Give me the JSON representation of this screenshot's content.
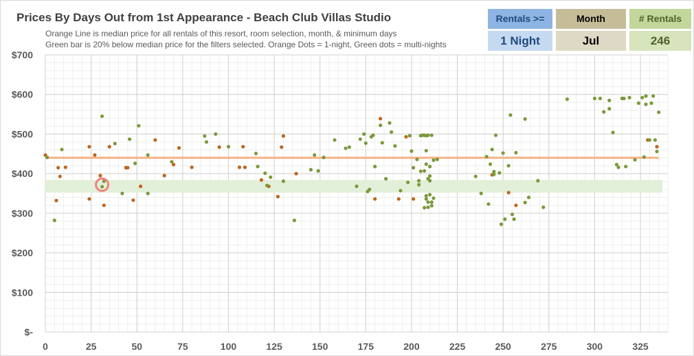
{
  "title": "Prices By Days Out from 1st Appearance - Beach Club Villas Studio",
  "subtitle_lines": [
    "Orange Line is median price for all rentals of this resort, room selection, month, & minimum days",
    "Green bar is 20% below median price for the filters selected. Orange Dots = 1-night, Green dots = multi-nights"
  ],
  "kpis": [
    {
      "label": "Rentals >=",
      "value": "1 Night",
      "header_color": "#8eb4e3",
      "value_bg": "#c5d9f1",
      "text_color": "#1f497d"
    },
    {
      "label": "Month",
      "value": "Jul",
      "header_color": "#c4bd97",
      "value_bg": "#ddd9c4",
      "text_color": "#000000"
    },
    {
      "label": "# Rentals",
      "value": "246",
      "header_color": "#c3d69b",
      "value_bg": "#d7e4bc",
      "text_color": "#4f6228"
    }
  ],
  "colors": {
    "one_night": "#c0651b",
    "multi_night": "#7a9a3a",
    "median_line": "#f4b183",
    "discount_band": "#e2efd9",
    "highlight_ring": "#f08080"
  },
  "chart_data": {
    "type": "scatter",
    "xlim": [
      0,
      340
    ],
    "ylim": [
      0,
      700
    ],
    "x_ticks": [
      0,
      25,
      50,
      75,
      100,
      125,
      150,
      175,
      200,
      225,
      250,
      275,
      300,
      325
    ],
    "y_ticks": [
      {
        "value": 0,
        "label": "$-"
      },
      {
        "value": 100,
        "label": "$100"
      },
      {
        "value": 200,
        "label": "$200"
      },
      {
        "value": 300,
        "label": "$300"
      },
      {
        "value": 400,
        "label": "$400"
      },
      {
        "value": 500,
        "label": "$500"
      },
      {
        "value": 600,
        "label": "$600"
      },
      {
        "value": 700,
        "label": "$700"
      }
    ],
    "grid": true,
    "median_price": 440,
    "discount_band": [
      352,
      384
    ],
    "highlight_point": [
      31,
      372
    ],
    "series": [
      {
        "key": "one_night",
        "points": [
          [
            0,
            447
          ],
          [
            7,
            415
          ],
          [
            8,
            393
          ],
          [
            11,
            416
          ],
          [
            6,
            332
          ],
          [
            24,
            336
          ],
          [
            24,
            468
          ],
          [
            27,
            447
          ],
          [
            30,
            395
          ],
          [
            32,
            320
          ],
          [
            35,
            468
          ],
          [
            44,
            415
          ],
          [
            45,
            415
          ],
          [
            48,
            333
          ],
          [
            52,
            368
          ],
          [
            60,
            485
          ],
          [
            65,
            395
          ],
          [
            70,
            423
          ],
          [
            73,
            465
          ],
          [
            80,
            416
          ],
          [
            95,
            467
          ],
          [
            106,
            416
          ],
          [
            108,
            468
          ],
          [
            109,
            416
          ],
          [
            118,
            384
          ],
          [
            122,
            368
          ],
          [
            127,
            342
          ],
          [
            129,
            467
          ],
          [
            130,
            495
          ],
          [
            137,
            400
          ],
          [
            180,
            336
          ],
          [
            183,
            539
          ],
          [
            193,
            336
          ],
          [
            197,
            493
          ],
          [
            201,
            336
          ],
          [
            244,
            397
          ],
          [
            253,
            352
          ],
          [
            257,
            320
          ],
          [
            329,
            485
          ],
          [
            334,
            468
          ]
        ]
      },
      {
        "key": "multi_night",
        "points": [
          [
            1,
            441
          ],
          [
            5,
            282
          ],
          [
            9,
            461
          ],
          [
            31,
            367
          ],
          [
            31,
            545
          ],
          [
            32,
            381
          ],
          [
            38,
            476
          ],
          [
            42,
            350
          ],
          [
            46,
            487
          ],
          [
            49,
            426
          ],
          [
            51,
            521
          ],
          [
            56,
            350
          ],
          [
            56,
            447
          ],
          [
            69,
            430
          ],
          [
            87,
            495
          ],
          [
            88,
            480
          ],
          [
            93,
            500
          ],
          [
            100,
            468
          ],
          [
            115,
            451
          ],
          [
            116,
            418
          ],
          [
            120,
            401
          ],
          [
            121,
            370
          ],
          [
            123,
            391
          ],
          [
            130,
            381
          ],
          [
            136,
            282
          ],
          [
            145,
            410
          ],
          [
            147,
            447
          ],
          [
            149,
            407
          ],
          [
            152,
            441
          ],
          [
            158,
            485
          ],
          [
            164,
            464
          ],
          [
            166,
            467
          ],
          [
            170,
            368
          ],
          [
            172,
            487
          ],
          [
            174,
            500
          ],
          [
            175,
            477
          ],
          [
            176,
            355
          ],
          [
            177,
            360
          ],
          [
            178,
            493
          ],
          [
            179,
            497
          ],
          [
            180,
            418
          ],
          [
            183,
            522
          ],
          [
            184,
            478
          ],
          [
            186,
            387
          ],
          [
            188,
            528
          ],
          [
            189,
            505
          ],
          [
            191,
            470
          ],
          [
            194,
            357
          ],
          [
            198,
            378
          ],
          [
            199,
            496
          ],
          [
            200,
            457
          ],
          [
            201,
            415
          ],
          [
            203,
            436
          ],
          [
            204,
            382
          ],
          [
            205,
            496
          ],
          [
            206,
            497
          ],
          [
            207,
            497
          ],
          [
            208,
            458
          ],
          [
            208,
            496
          ],
          [
            209,
            497
          ],
          [
            207,
            314
          ],
          [
            208,
            344
          ],
          [
            208,
            336
          ],
          [
            209,
            315
          ],
          [
            209,
            328
          ],
          [
            210,
            347
          ],
          [
            210,
            382
          ],
          [
            210,
            418
          ],
          [
            211,
            497
          ],
          [
            212,
            434
          ],
          [
            204,
            372
          ],
          [
            205,
            406
          ],
          [
            207,
            407
          ],
          [
            208,
            424
          ],
          [
            209,
            387
          ],
          [
            210,
            394
          ],
          [
            211,
            319
          ],
          [
            211,
            328
          ],
          [
            212,
            338
          ],
          [
            214,
            436
          ],
          [
            235,
            393
          ],
          [
            238,
            350
          ],
          [
            241,
            443
          ],
          [
            242,
            323
          ],
          [
            243,
            424
          ],
          [
            244,
            461
          ],
          [
            245,
            398
          ],
          [
            245,
            405
          ],
          [
            246,
            497
          ],
          [
            248,
            402
          ],
          [
            249,
            272
          ],
          [
            250,
            452
          ],
          [
            251,
            285
          ],
          [
            253,
            420
          ],
          [
            254,
            548
          ],
          [
            255,
            297
          ],
          [
            256,
            285
          ],
          [
            257,
            453
          ],
          [
            262,
            538
          ],
          [
            262,
            327
          ],
          [
            264,
            340
          ],
          [
            269,
            382
          ],
          [
            272,
            315
          ],
          [
            285,
            588
          ],
          [
            300,
            590
          ],
          [
            303,
            590
          ],
          [
            305,
            556
          ],
          [
            308,
            564
          ],
          [
            308,
            585
          ],
          [
            310,
            504
          ],
          [
            312,
            423
          ],
          [
            313,
            416
          ],
          [
            315,
            590
          ],
          [
            316,
            590
          ],
          [
            317,
            418
          ],
          [
            319,
            592
          ],
          [
            322,
            435
          ],
          [
            324,
            578
          ],
          [
            326,
            592
          ],
          [
            327,
            442
          ],
          [
            328,
            596
          ],
          [
            328,
            575
          ],
          [
            330,
            485
          ],
          [
            331,
            578
          ],
          [
            332,
            596
          ],
          [
            333,
            485
          ],
          [
            334,
            456
          ],
          [
            335,
            555
          ]
        ]
      }
    ]
  }
}
